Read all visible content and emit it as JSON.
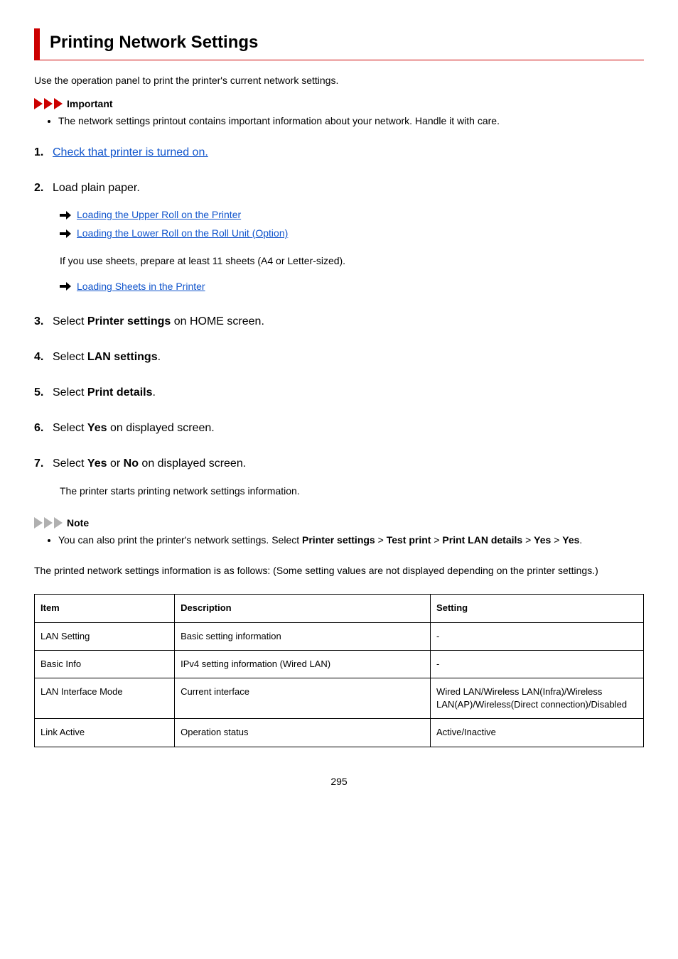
{
  "colors": {
    "accent_red": "#cc0000",
    "icon_gray": "#b0b0b0",
    "link_blue": "#1155cc",
    "border_black": "#000000"
  },
  "title": "Printing Network Settings",
  "intro": "Use the operation panel to print the printer's current network settings.",
  "important": {
    "label": "Important",
    "items": [
      "The network settings printout contains important information about your network. Handle it with care."
    ]
  },
  "steps": [
    {
      "text_link": "Check that printer is turned on."
    },
    {
      "text_plain": "Load plain paper.",
      "sub_links": [
        "Loading the Upper Roll on the Printer",
        "Loading the Lower Roll on the Roll Unit (Option)"
      ],
      "plain_note": "If you use sheets, prepare at least 11 sheets (A4 or Letter-sized).",
      "sub_links_2": [
        "Loading Sheets in the Printer"
      ]
    },
    {
      "rich": [
        {
          "t": "Select "
        },
        {
          "t": "Printer settings",
          "b": true
        },
        {
          "t": " on HOME screen."
        }
      ]
    },
    {
      "rich": [
        {
          "t": "Select "
        },
        {
          "t": "LAN settings",
          "b": true
        },
        {
          "t": "."
        }
      ]
    },
    {
      "rich": [
        {
          "t": "Select "
        },
        {
          "t": "Print details",
          "b": true
        },
        {
          "t": "."
        }
      ]
    },
    {
      "rich": [
        {
          "t": "Select "
        },
        {
          "t": "Yes",
          "b": true
        },
        {
          "t": " on displayed screen."
        }
      ]
    },
    {
      "rich": [
        {
          "t": "Select "
        },
        {
          "t": "Yes",
          "b": true
        },
        {
          "t": " or "
        },
        {
          "t": "No",
          "b": true
        },
        {
          "t": " on displayed screen."
        }
      ],
      "tail": "The printer starts printing network settings information."
    }
  ],
  "note": {
    "label": "Note",
    "rich": [
      {
        "t": "You can also print the printer's network settings. Select "
      },
      {
        "t": "Printer settings",
        "b": true
      },
      {
        "t": " > "
      },
      {
        "t": "Test print",
        "b": true
      },
      {
        "t": " > "
      },
      {
        "t": "Print LAN details",
        "b": true
      },
      {
        "t": " > "
      },
      {
        "t": "Yes",
        "b": true
      },
      {
        "t": " > "
      },
      {
        "t": "Yes",
        "b": true
      },
      {
        "t": "."
      }
    ]
  },
  "after_steps": "The printed network settings information is as follows: (Some setting values are not displayed depending on the printer settings.)",
  "table": {
    "columns": [
      "Item",
      "Description",
      "Setting"
    ],
    "rows": [
      [
        "LAN Setting",
        "Basic setting information",
        "-"
      ],
      [
        "Basic Info",
        "IPv4 setting information (Wired LAN)",
        "-"
      ],
      [
        "LAN Interface Mode",
        "Current interface",
        "Wired LAN/Wireless LAN(Infra)/Wireless LAN(AP)/Wireless(Direct connection)/Disabled"
      ],
      [
        "Link Active",
        "Operation status",
        "Active/Inactive"
      ]
    ]
  },
  "page_number": "295"
}
